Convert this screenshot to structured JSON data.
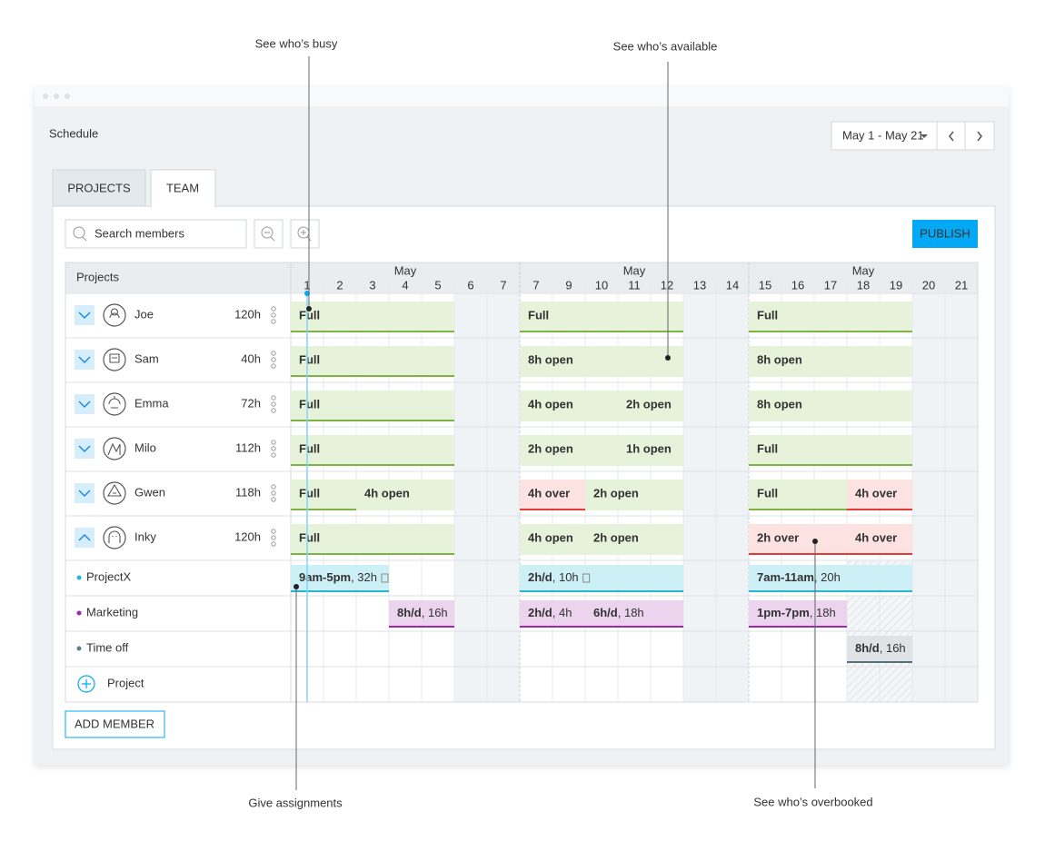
{
  "annotations": {
    "busy": "See who’s busy",
    "available": "See who’s available",
    "assign": "Give assignments",
    "overbooked": "See who’s overbooked"
  },
  "header": {
    "title": "Schedule",
    "date_range": "May 1 - May 21"
  },
  "tabs": [
    "PROJECTS",
    "TEAM"
  ],
  "toolbar": {
    "search_placeholder": "Search members",
    "publish": "PUBLISH"
  },
  "grid": {
    "column_header": "Projects",
    "months": [
      "May",
      "May",
      "May"
    ],
    "days": [
      1,
      2,
      3,
      4,
      5,
      6,
      7,
      7,
      9,
      10,
      11,
      12,
      13,
      14,
      15,
      16,
      17,
      18,
      19,
      20,
      21
    ]
  },
  "members": [
    {
      "name": "Joe",
      "hours": "120h",
      "bars": [
        "Full",
        "Full",
        "Full"
      ]
    },
    {
      "name": "Sam",
      "hours": "40h",
      "bars": [
        "Full",
        "8h open",
        "8h open"
      ]
    },
    {
      "name": "Emma",
      "hours": "72h",
      "bars": [
        "Full",
        "4h open",
        "2h open",
        "8h open"
      ]
    },
    {
      "name": "Milo",
      "hours": "112h",
      "bars": [
        "Full",
        "2h open",
        "1h open",
        "Full"
      ]
    },
    {
      "name": "Gwen",
      "hours": "118h",
      "bars": [
        "Full",
        "4h open",
        "4h over",
        "2h open",
        "Full",
        "4h over"
      ]
    },
    {
      "name": "Inky",
      "hours": "120h",
      "bars": [
        "Full",
        "4h open",
        "2h open",
        "2h over",
        "4h over"
      ]
    }
  ],
  "projects": [
    {
      "name": "ProjectX",
      "color": "#26b5d6",
      "bars": [
        {
          "bold": "9am-5pm",
          "rest": ", 32h"
        },
        {
          "bold": "2h/d",
          "rest": ", 10h"
        },
        {
          "bold": "7am-11am",
          "rest": ", 20h"
        }
      ]
    },
    {
      "name": "Marketing",
      "color": "#9c27b0",
      "bars": [
        {
          "bold": "8h/d",
          "rest": ", 16h"
        },
        {
          "bold": "2h/d",
          "rest": ", 4h"
        },
        {
          "bold": "6h/d",
          "rest": ", 18h"
        },
        {
          "bold": "1pm-7pm",
          "rest": ", 18h"
        }
      ]
    },
    {
      "name": "Time off",
      "color": "#607d8b",
      "bars": [
        {
          "bold": "8h/d",
          "rest": ", 16h"
        }
      ]
    }
  ],
  "add_project": "Project",
  "add_member": "ADD MEMBER"
}
